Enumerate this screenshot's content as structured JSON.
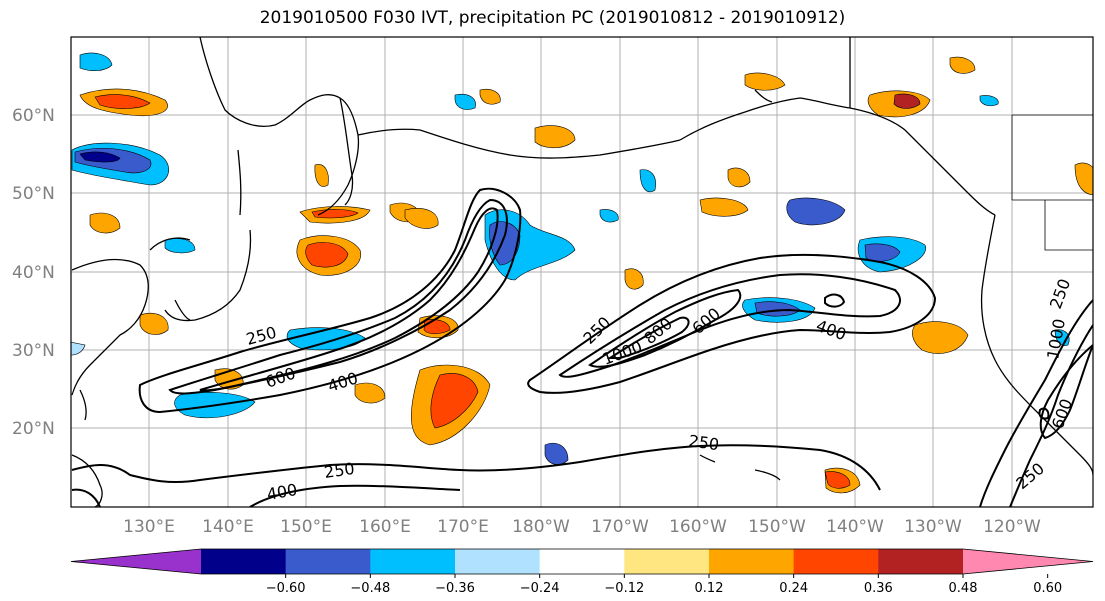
{
  "title": "2019010500 F030 IVT, precipitation PC (2019010812 - 2019010912)",
  "map": {
    "lat_labels": [
      "60°N",
      "50°N",
      "40°N",
      "30°N",
      "20°N"
    ],
    "lon_labels": [
      "130°E",
      "140°E",
      "150°E",
      "160°E",
      "170°E",
      "180°W",
      "170°W",
      "160°W",
      "150°W",
      "140°W",
      "130°W",
      "120°W"
    ],
    "contour_labels": [
      "250",
      "600",
      "400",
      "250",
      "1000",
      "800",
      "600",
      "400",
      "250",
      "400",
      "250",
      "250",
      "1000",
      "600",
      "250"
    ]
  },
  "colorbar": {
    "tick_labels": [
      "−0.60",
      "−0.48",
      "−0.36",
      "−0.24",
      "−0.12",
      "0.12",
      "0.24",
      "0.36",
      "0.48",
      "0.60"
    ],
    "colors": [
      "#9932cc",
      "#00008b",
      "#3a5bcc",
      "#00bfff",
      "#b0e2ff",
      "#ffffff",
      "#ffe680",
      "#ffa500",
      "#ff4500",
      "#b22222",
      "#ff88b0"
    ]
  }
}
